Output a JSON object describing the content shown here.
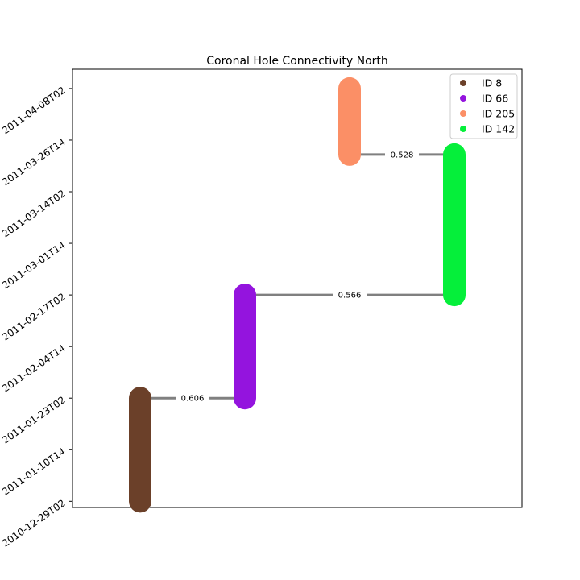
{
  "chart_data": {
    "type": "connectivity",
    "title": "Coronal Hole Connectivity North",
    "y_ticks": [
      "2010-12-29T02",
      "2011-01-10T14",
      "2011-01-23T02",
      "2011-02-04T14",
      "2011-02-17T02",
      "2011-03-01T14",
      "2011-03-14T02",
      "2011-03-26T14",
      "2011-04-08T02"
    ],
    "ylim": [
      "2010-12-27T14",
      "2011-04-12T18"
    ],
    "x_ticks_visible": false,
    "legend_position": "top-right",
    "nodes": [
      {
        "id": "ID 8",
        "color": "#6b4029",
        "column": 1,
        "start": "2010-12-29T02",
        "end": "2011-01-23T02"
      },
      {
        "id": "ID 66",
        "color": "#9414de",
        "column": 2,
        "start": "2011-01-23T02",
        "end": "2011-02-17T02"
      },
      {
        "id": "ID 205",
        "color": "#fb8f66",
        "column": 3,
        "start": "2011-03-23T02",
        "end": "2011-04-08T02"
      },
      {
        "id": "ID 142",
        "color": "#05ef3a",
        "column": 4,
        "start": "2011-02-17T02",
        "end": "2011-03-23T02"
      }
    ],
    "edges": [
      {
        "from": "ID 8",
        "to": "ID 66",
        "time": "2011-01-23T02",
        "weight": "0.606"
      },
      {
        "from": "ID 66",
        "to": "ID 142",
        "time": "2011-02-17T02",
        "weight": "0.566"
      },
      {
        "from": "ID 205",
        "to": "ID 142",
        "time": "2011-03-23T02",
        "weight": "0.528"
      }
    ],
    "legend": [
      "ID 8",
      "ID 66",
      "ID 205",
      "ID 142"
    ],
    "edge_color": "#808080"
  }
}
